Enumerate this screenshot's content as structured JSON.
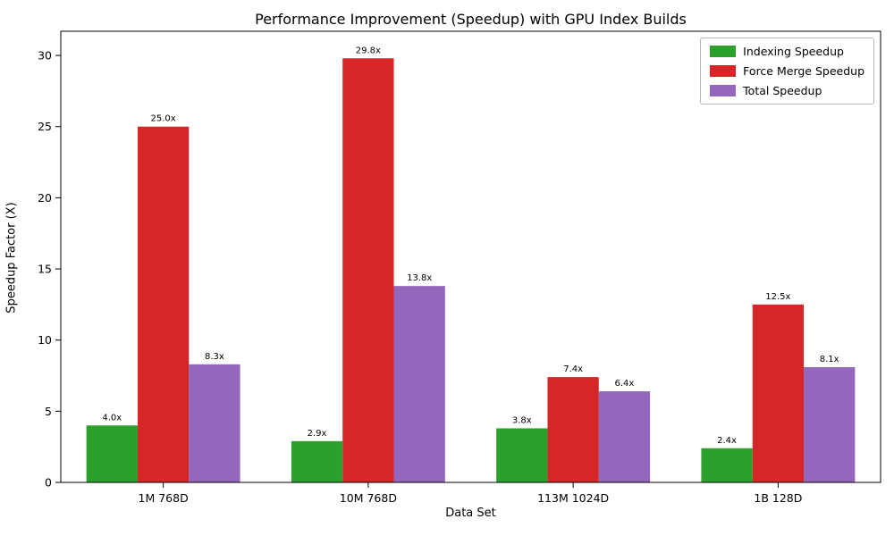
{
  "chart_data": {
    "type": "bar",
    "title": "Performance Improvement (Speedup) with GPU Index Builds",
    "xlabel": "Data Set",
    "ylabel": "Speedup Factor (X)",
    "categories": [
      "1M 768D",
      "10M 768D",
      "113M 1024D",
      "1B 128D"
    ],
    "series": [
      {
        "name": "Indexing Speedup",
        "color": "#2ca02c",
        "values": [
          4.0,
          2.9,
          3.8,
          2.4
        ],
        "labels": [
          "4.0x",
          "2.9x",
          "3.8x",
          "2.4x"
        ]
      },
      {
        "name": "Force Merge Speedup",
        "color": "#d62728",
        "values": [
          25.0,
          29.8,
          7.4,
          12.5
        ],
        "labels": [
          "25.0x",
          "29.8x",
          "7.4x",
          "12.5x"
        ]
      },
      {
        "name": "Total Speedup",
        "color": "#9467bd",
        "values": [
          8.3,
          13.8,
          6.4,
          8.1
        ],
        "labels": [
          "8.3x",
          "13.8x",
          "6.4x",
          "8.1x"
        ]
      }
    ],
    "ylim": [
      0,
      31.7
    ],
    "yticks": [
      0,
      5,
      10,
      15,
      20,
      25,
      30
    ],
    "grid": false,
    "legend_position": "upper right"
  }
}
